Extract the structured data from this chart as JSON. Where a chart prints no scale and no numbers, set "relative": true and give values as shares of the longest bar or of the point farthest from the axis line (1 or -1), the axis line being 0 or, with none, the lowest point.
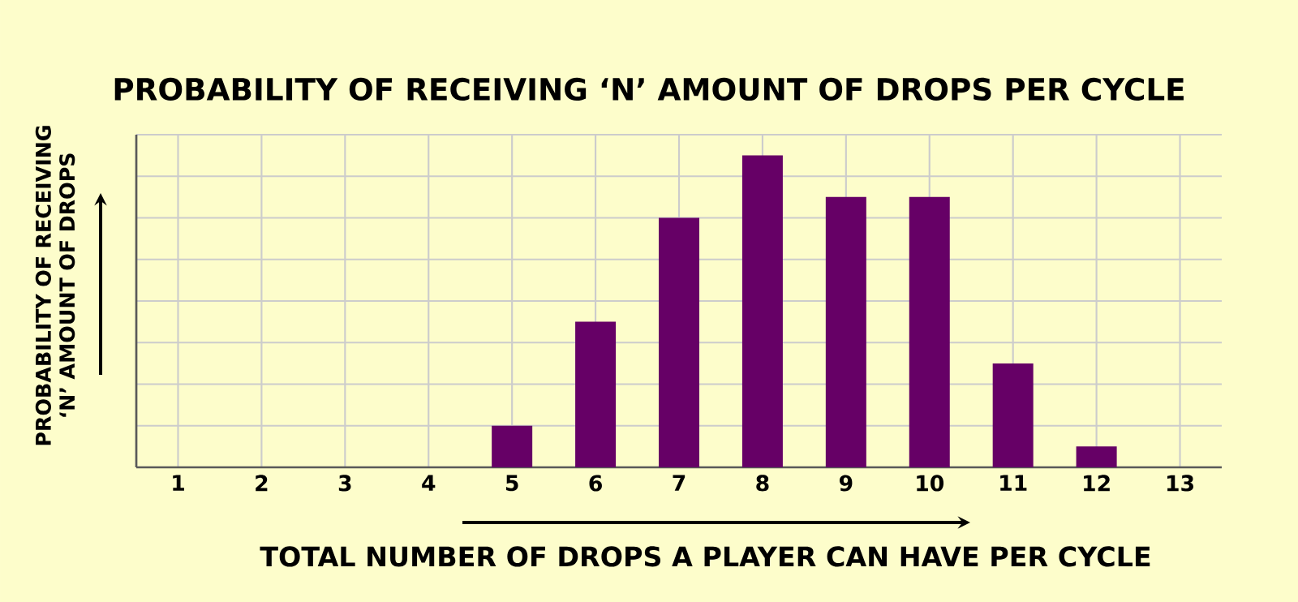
{
  "chart_data": {
    "type": "bar",
    "title": "PROBABILITY OF RECEIVING ‘N’ AMOUNT OF DROPS PER CYCLE",
    "xlabel": "TOTAL NUMBER OF DROPS A PLAYER CAN HAVE PER CYCLE",
    "ylabel": "PROBABILITY OF RECEIVING ‘N’ AMOUNT OF DROPS",
    "categories": [
      "1",
      "2",
      "3",
      "4",
      "5",
      "6",
      "7",
      "8",
      "9",
      "10",
      "11",
      "12",
      "13"
    ],
    "values": [
      0,
      0,
      0,
      0,
      0.133,
      0.467,
      0.8,
      1,
      0.867,
      0.867,
      0.333,
      0.067,
      0
    ],
    "color": "#660066",
    "relative": true,
    "grid": true
  }
}
